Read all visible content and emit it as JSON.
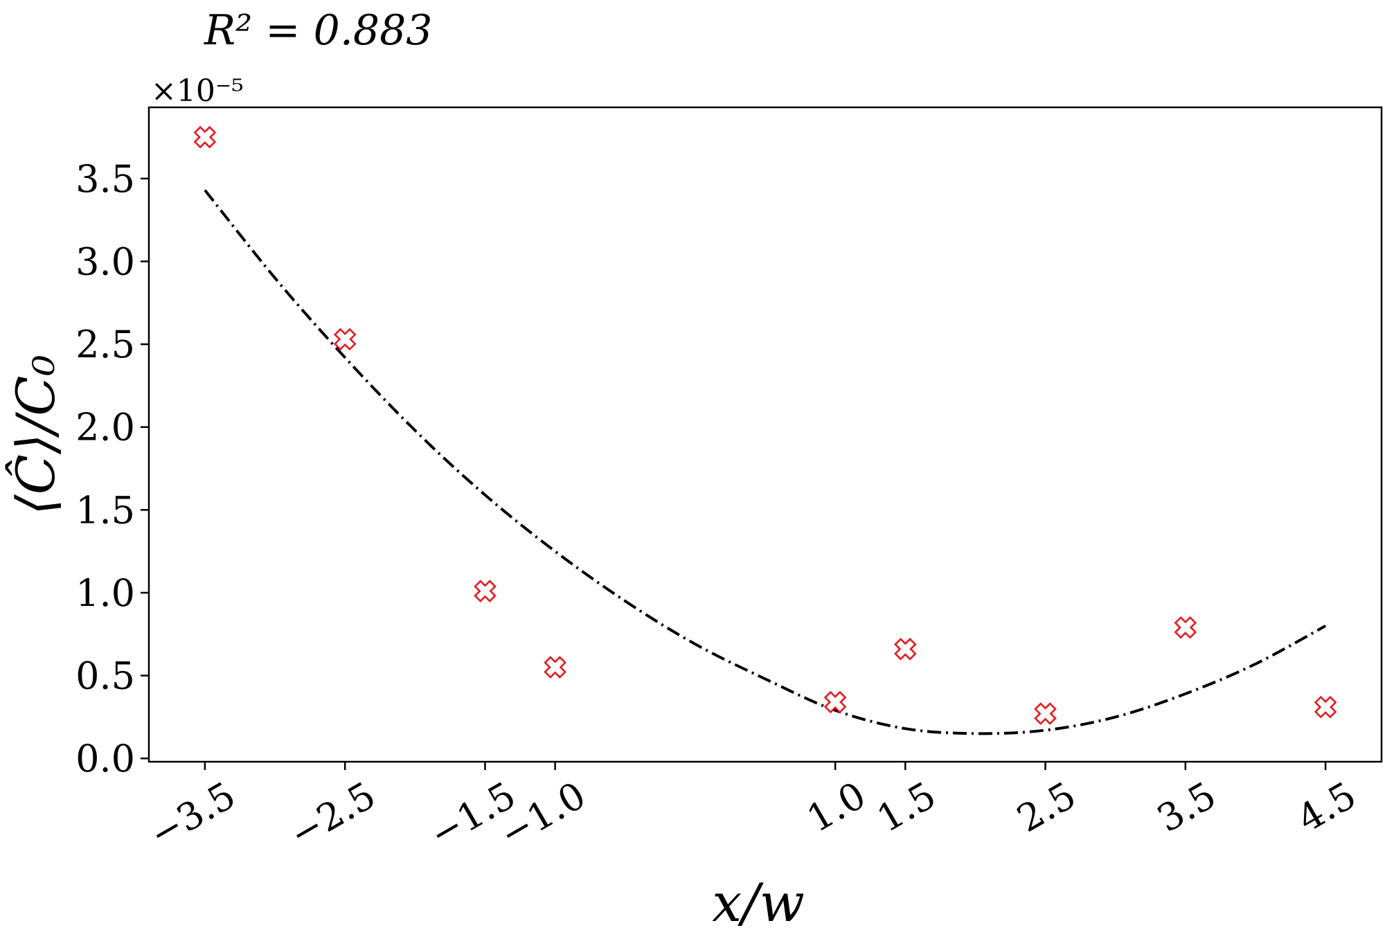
{
  "chart_data": {
    "type": "scatter",
    "title": "R² = 0.883",
    "xlabel": "x/w",
    "ylabel": "⟨Ĉ⟩/C₀",
    "y_multiplier_label": "×10⁻⁵",
    "xlim": [
      -3.9,
      4.9
    ],
    "ylim": [
      -0.02,
      3.93
    ],
    "x_ticks": [
      -3.5,
      -2.5,
      -1.5,
      -1.0,
      1.0,
      1.5,
      2.5,
      3.5,
      4.5
    ],
    "x_tick_labels": [
      "−3.5",
      "−2.5",
      "−1.5",
      "−1.0",
      "1.0",
      "1.5",
      "2.5",
      "3.5",
      "4.5"
    ],
    "y_ticks": [
      0.0,
      0.5,
      1.0,
      1.5,
      2.0,
      2.5,
      3.0,
      3.5
    ],
    "y_tick_labels": [
      "0.0",
      "0.5",
      "1.0",
      "1.5",
      "2.0",
      "2.5",
      "3.0",
      "3.5"
    ],
    "grid": false,
    "series": [
      {
        "kind": "scatter",
        "marker": "X",
        "color": "#e8191f",
        "x": [
          -3.5,
          -2.5,
          -1.5,
          -1.0,
          1.0,
          1.5,
          2.5,
          3.5,
          4.5
        ],
        "y": [
          3.75,
          2.53,
          1.01,
          0.55,
          0.34,
          0.66,
          0.27,
          0.79,
          0.31
        ]
      },
      {
        "kind": "line",
        "style": "dash-dot",
        "color": "#000000",
        "x": [
          -3.5,
          -3.0,
          -2.5,
          -2.0,
          -1.5,
          -1.0,
          -0.5,
          0.0,
          0.5,
          1.0,
          1.5,
          2.0,
          2.5,
          3.0,
          3.5,
          4.0,
          4.5
        ],
        "y": [
          3.43,
          2.9,
          2.42,
          1.98,
          1.59,
          1.25,
          0.95,
          0.69,
          0.48,
          0.29,
          0.18,
          0.15,
          0.17,
          0.25,
          0.39,
          0.57,
          0.8
        ]
      }
    ]
  }
}
